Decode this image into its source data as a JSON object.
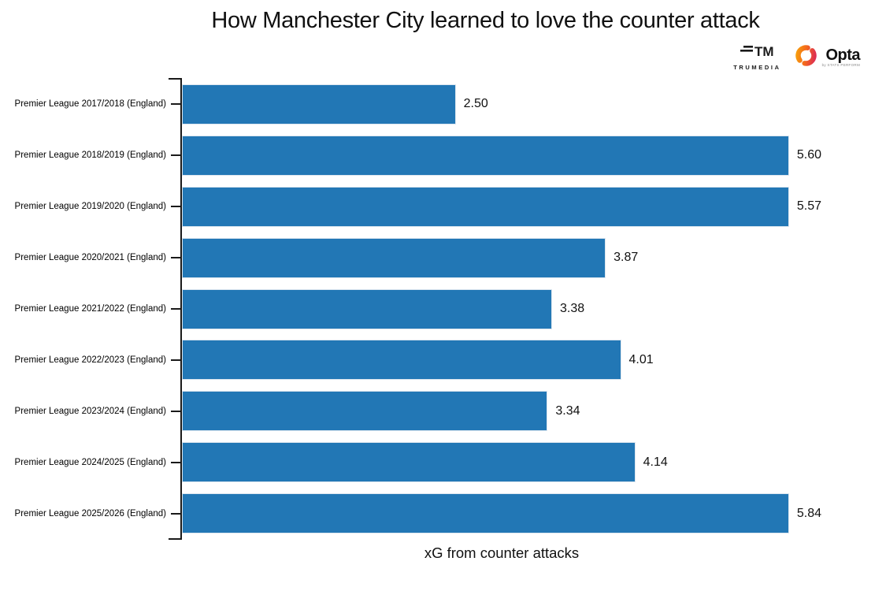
{
  "title": "How Manchester City learned to love the counter attack",
  "logos": {
    "trumedia": {
      "label": "TRUMEDIA"
    },
    "opta": {
      "label": "Opta",
      "sublabel": "by STATS PERFORM"
    }
  },
  "chart_data": {
    "type": "bar",
    "orientation": "horizontal",
    "title": "How Manchester City learned to love the counter attack",
    "xlabel": "xG from counter attacks",
    "ylabel": "",
    "categories": [
      "Premier League 2017/2018 (England)",
      "Premier League 2018/2019 (England)",
      "Premier League 2019/2020 (England)",
      "Premier League 2020/2021 (England)",
      "Premier League 2021/2022 (England)",
      "Premier League 2022/2023 (England)",
      "Premier League 2023/2024 (England)",
      "Premier League 2024/2025 (England)",
      "Premier League 2025/2026 (England)"
    ],
    "values": [
      2.5,
      5.6,
      5.57,
      3.87,
      3.38,
      4.01,
      3.34,
      4.14,
      5.84
    ],
    "value_labels": [
      "2.50",
      "5.60",
      "5.57",
      "3.87",
      "3.38",
      "4.01",
      "3.34",
      "4.14",
      "5.84"
    ],
    "bar_color": "#2277b5",
    "bar_edge_color": "#dce6ef",
    "scale_max": 5.84,
    "xlim": [
      0,
      6.4
    ],
    "grid": false,
    "legend": false
  }
}
